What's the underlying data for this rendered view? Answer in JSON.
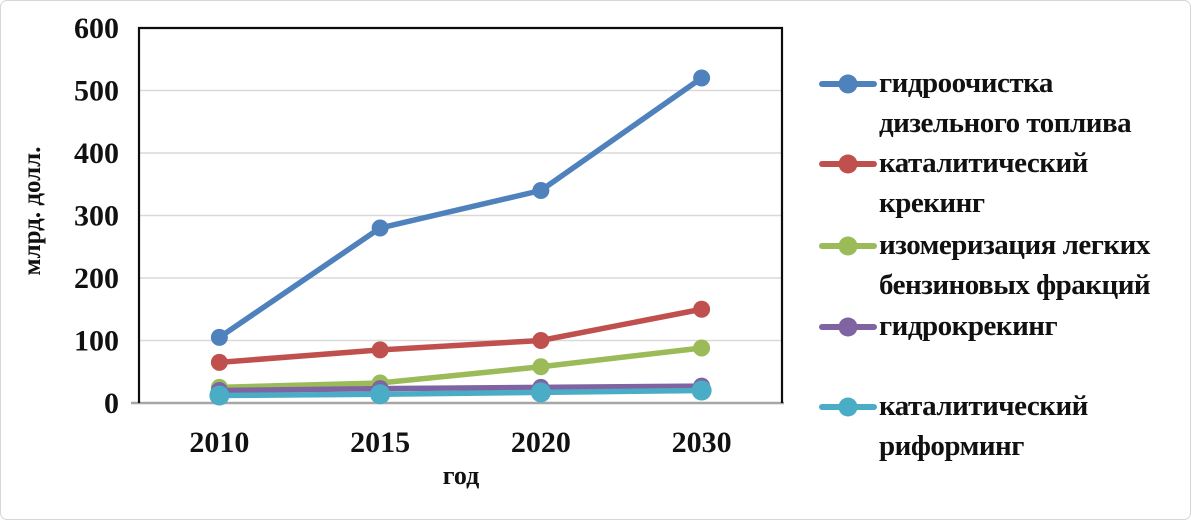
{
  "chart_data": {
    "type": "line",
    "title": "",
    "xlabel": "год",
    "ylabel": "млрд. долл.",
    "categories": [
      "2010",
      "2015",
      "2020",
      "2030"
    ],
    "ylim": [
      0,
      600
    ],
    "ytick_step": 100,
    "grid": "horizontal-only",
    "legend_position": "right",
    "plot_border_color": "#0d0d0d",
    "gridline_color": "#d9d9d9",
    "axis_line_color": "#a6a6a6",
    "series": [
      {
        "name": "гидроочистка дизельного топлива",
        "label_lines": [
          "гидроочистка",
          "дизельного топлива"
        ],
        "color": "#4F81BD",
        "values": [
          105,
          280,
          340,
          520
        ]
      },
      {
        "name": "каталитический крекинг",
        "label_lines": [
          "каталитический",
          "крекинг"
        ],
        "color": "#C0504D",
        "values": [
          65,
          85,
          100,
          150
        ]
      },
      {
        "name": "изомеризация легких бензиновых фракций",
        "label_lines": [
          "изомеризация легких",
          "бензиновых фракций"
        ],
        "color": "#9BBB59",
        "values": [
          25,
          32,
          58,
          88
        ]
      },
      {
        "name": "гидрокрекинг",
        "label_lines": [
          "гидрокрекинг"
        ],
        "color": "#8064A2",
        "values": [
          20,
          23,
          25,
          27
        ]
      },
      {
        "name": "каталитический риформинг",
        "label_lines": [
          "каталитический",
          "риформинг"
        ],
        "color": "#4BACC6",
        "values": [
          12,
          14,
          17,
          20
        ]
      }
    ]
  }
}
